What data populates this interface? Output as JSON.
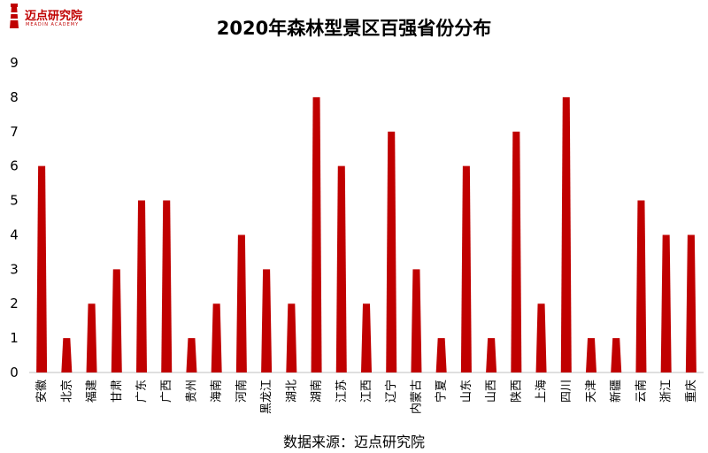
{
  "logo": {
    "name": "迈点研究院",
    "sub": "MEADIN ACADEMY"
  },
  "colors": {
    "bar": "#c00000",
    "axis": "#bfbfbf"
  },
  "chart_data": {
    "type": "bar",
    "title": "2020年森林型景区百强省份分布",
    "xlabel": "",
    "ylabel": "",
    "ylim": [
      0,
      9
    ],
    "yticks": [
      0,
      1,
      2,
      3,
      4,
      5,
      6,
      7,
      8,
      9
    ],
    "grid": false,
    "legend": "none",
    "bar_shape": "cone",
    "categories": [
      "安徽",
      "北京",
      "福建",
      "甘肃",
      "广东",
      "广西",
      "贵州",
      "海南",
      "河南",
      "黑龙江",
      "湖北",
      "湖南",
      "江苏",
      "江西",
      "辽宁",
      "内蒙古",
      "宁夏",
      "山东",
      "山西",
      "陕西",
      "上海",
      "四川",
      "天津",
      "新疆",
      "云南",
      "浙江",
      "重庆"
    ],
    "values": [
      6,
      1,
      2,
      3,
      5,
      5,
      1,
      2,
      4,
      3,
      2,
      8,
      6,
      2,
      7,
      3,
      1,
      6,
      1,
      7,
      2,
      8,
      1,
      1,
      5,
      4,
      4
    ]
  },
  "source": "数据来源：迈点研究院"
}
